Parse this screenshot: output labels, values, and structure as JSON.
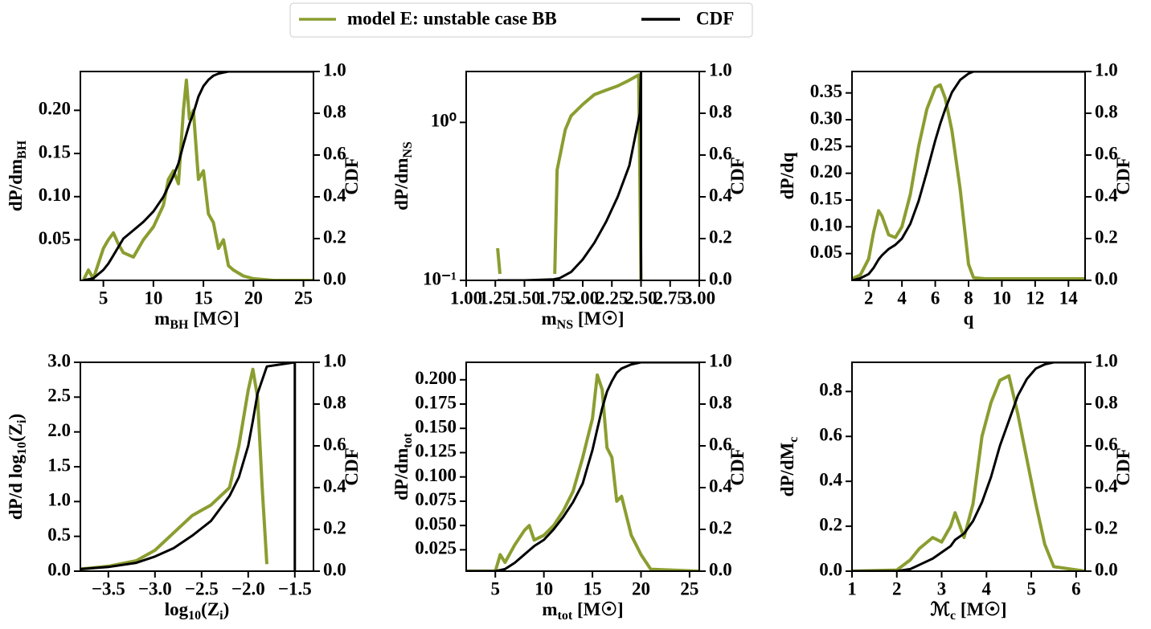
{
  "chart_data": [
    {
      "type": "line",
      "xlabel": [
        "m",
        "BH",
        " [M☉]"
      ],
      "ylabel": [
        "dP/dm",
        "BH"
      ],
      "y2label": [
        "CDF"
      ],
      "xlim": [
        2.7,
        26
      ],
      "xticks": [
        5,
        10,
        15,
        20,
        25
      ],
      "ylim": [
        0.003,
        0.245
      ],
      "yticks": [
        0.05,
        {
          "value": 0.1,
          "label": "0.10"
        },
        0.15,
        {
          "value": 0.2,
          "label": "0.20"
        }
      ],
      "y2lim": [
        0,
        1
      ],
      "y2ticks": [
        {
          "value": 0,
          "label": "0.0"
        },
        0.2,
        0.4,
        0.6,
        0.8,
        {
          "value": 1,
          "label": "1.0"
        }
      ],
      "series": [
        {
          "name": "model E: unstable case BB",
          "color": "#8a9e30",
          "x": [
            3,
            3.5,
            4,
            5,
            5.5,
            6,
            6.5,
            7,
            8,
            9,
            10,
            11,
            11.5,
            12,
            12.5,
            13,
            13.3,
            13.6,
            14,
            14.5,
            15,
            15.5,
            16,
            16.5,
            17,
            17.5,
            18,
            19,
            20,
            22,
            26
          ],
          "values": [
            0.003,
            0.015,
            0.005,
            0.04,
            0.05,
            0.058,
            0.045,
            0.035,
            0.03,
            0.05,
            0.065,
            0.09,
            0.12,
            0.13,
            0.115,
            0.2,
            0.235,
            0.19,
            0.2,
            0.12,
            0.13,
            0.08,
            0.07,
            0.04,
            0.05,
            0.02,
            0.015,
            0.008,
            0.005,
            0.003,
            0.003
          ]
        },
        {
          "name": "CDF",
          "color": "#000000",
          "axis": "y2",
          "x": [
            3,
            3.5,
            4,
            5,
            5.5,
            6,
            6.5,
            7,
            8,
            9,
            10,
            11,
            11.5,
            12,
            12.5,
            13,
            13.3,
            13.6,
            14,
            14.5,
            15,
            15.5,
            16,
            16.5,
            17,
            17.5,
            18,
            19,
            20,
            22,
            26
          ],
          "values": [
            0,
            0.005,
            0.01,
            0.05,
            0.08,
            0.12,
            0.16,
            0.2,
            0.24,
            0.28,
            0.33,
            0.4,
            0.45,
            0.5,
            0.56,
            0.65,
            0.7,
            0.75,
            0.8,
            0.88,
            0.93,
            0.96,
            0.98,
            0.99,
            0.995,
            1,
            1,
            1,
            1,
            1,
            1
          ]
        }
      ]
    },
    {
      "type": "line",
      "xlabel": [
        "m",
        "NS",
        " [M☉]"
      ],
      "ylabel": [
        "dP/dm",
        "NS"
      ],
      "y2label": [
        "CDF"
      ],
      "yscale": "log",
      "xlim": [
        1,
        3
      ],
      "xticks": [
        {
          "value": 1,
          "label": "1.00"
        },
        1.25,
        {
          "value": 1.5,
          "label": "1.50"
        },
        1.75,
        {
          "value": 2,
          "label": "2.00"
        },
        2.25,
        {
          "value": 2.5,
          "label": "2.50"
        },
        2.75,
        {
          "value": 3,
          "label": "3.00"
        }
      ],
      "ylim": [
        0.1,
        2.1
      ],
      "yticks": [
        {
          "value": 0.1,
          "label": "10⁻¹"
        },
        {
          "value": 1,
          "label": "10⁰"
        }
      ],
      "y2lim": [
        0,
        1
      ],
      "y2ticks": [
        {
          "value": 0,
          "label": "0.0"
        },
        0.2,
        0.4,
        0.6,
        0.8,
        {
          "value": 1,
          "label": "1.0"
        }
      ],
      "series": [
        {
          "color": "#8a9e30",
          "x": [
            1.27,
            1.29,
            1.5,
            1.76,
            1.78,
            1.85,
            1.9,
            2.0,
            2.1,
            2.2,
            2.3,
            2.4,
            2.48,
            2.5
          ],
          "values": [
            0.16,
            0.11,
            null,
            0.11,
            0.5,
            0.9,
            1.1,
            1.3,
            1.5,
            1.6,
            1.7,
            1.85,
            2.0,
            0.1
          ]
        },
        {
          "color": "#000000",
          "axis": "y2",
          "x": [
            1.27,
            1.5,
            1.75,
            1.8,
            1.9,
            2.0,
            2.1,
            2.2,
            2.3,
            2.4,
            2.49,
            2.5,
            2.5
          ],
          "values": [
            0,
            0,
            0.005,
            0.01,
            0.04,
            0.1,
            0.18,
            0.28,
            0.4,
            0.55,
            0.8,
            1,
            0
          ]
        }
      ]
    },
    {
      "type": "line",
      "xlabel": [
        "q"
      ],
      "ylabel": [
        "dP/dq"
      ],
      "y2label": [
        "CDF"
      ],
      "xlim": [
        1,
        15
      ],
      "xticks": [
        2,
        4,
        6,
        8,
        10,
        12,
        14
      ],
      "ylim": [
        0,
        0.39
      ],
      "yticks": [
        0.05,
        {
          "value": 0.1,
          "label": "0.10"
        },
        0.15,
        {
          "value": 0.2,
          "label": "0.20"
        },
        0.25,
        {
          "value": 0.3,
          "label": "0.30"
        },
        0.35
      ],
      "y2lim": [
        0,
        1
      ],
      "y2ticks": [
        {
          "value": 0,
          "label": "0.0"
        },
        0.2,
        0.4,
        0.6,
        0.8,
        {
          "value": 1,
          "label": "1.0"
        }
      ],
      "series": [
        {
          "color": "#8a9e30",
          "x": [
            1,
            1.5,
            2,
            2.3,
            2.6,
            2.8,
            3.2,
            3.6,
            4,
            4.5,
            5,
            5.5,
            6,
            6.3,
            6.6,
            7,
            7.5,
            8,
            8.3,
            9,
            12,
            15
          ],
          "values": [
            0.003,
            0.01,
            0.04,
            0.09,
            0.13,
            0.12,
            0.085,
            0.08,
            0.1,
            0.16,
            0.25,
            0.32,
            0.36,
            0.365,
            0.34,
            0.28,
            0.17,
            0.03,
            0.005,
            0.003,
            0.003,
            0.003
          ]
        },
        {
          "color": "#000000",
          "axis": "y2",
          "x": [
            1,
            1.5,
            2,
            2.3,
            2.6,
            2.8,
            3.2,
            3.6,
            4,
            4.5,
            5,
            5.5,
            6,
            6.3,
            6.6,
            7,
            7.5,
            8,
            8.3,
            9,
            12,
            15
          ],
          "values": [
            0,
            0.01,
            0.03,
            0.06,
            0.1,
            0.12,
            0.15,
            0.17,
            0.2,
            0.27,
            0.38,
            0.52,
            0.67,
            0.75,
            0.82,
            0.9,
            0.96,
            0.99,
            1,
            1,
            1,
            1
          ]
        }
      ]
    },
    {
      "type": "line",
      "xlabel": [
        "log",
        "10",
        "(Z",
        "i",
        ")"
      ],
      "ylabel": [
        "dP/d log",
        "10",
        "(Z",
        "i",
        ")"
      ],
      "y2label": [
        "CDF"
      ],
      "xlim": [
        -3.8,
        -1.3
      ],
      "xticks": [
        {
          "value": -3.5,
          "label": "−3.5"
        },
        {
          "value": -3,
          "label": "−3.0"
        },
        {
          "value": -2.5,
          "label": "−2.5"
        },
        {
          "value": -2,
          "label": "−2.0"
        },
        {
          "value": -1.5,
          "label": "−1.5"
        }
      ],
      "ylim": [
        0,
        3
      ],
      "yticks": [
        {
          "value": 0,
          "label": "0.0"
        },
        0.5,
        {
          "value": 1,
          "label": "1.0"
        },
        1.5,
        {
          "value": 2,
          "label": "2.0"
        },
        2.5,
        {
          "value": 3,
          "label": "3.0"
        }
      ],
      "y2lim": [
        0,
        1
      ],
      "y2ticks": [
        {
          "value": 0,
          "label": "0.0"
        },
        0.2,
        0.4,
        0.6,
        0.8,
        {
          "value": 1,
          "label": "1.0"
        }
      ],
      "series": [
        {
          "color": "#8a9e30",
          "x": [
            -3.8,
            -3.5,
            -3.2,
            -3.0,
            -2.8,
            -2.6,
            -2.4,
            -2.2,
            -2.1,
            -2.0,
            -1.95,
            -1.9,
            -1.85,
            -1.8
          ],
          "values": [
            0.03,
            0.07,
            0.15,
            0.3,
            0.55,
            0.8,
            0.95,
            1.2,
            1.8,
            2.6,
            2.9,
            2.5,
            1.2,
            0.1
          ]
        },
        {
          "color": "#000000",
          "axis": "y2",
          "x": [
            -3.8,
            -3.5,
            -3.2,
            -3.0,
            -2.8,
            -2.6,
            -2.4,
            -2.2,
            -2.1,
            -2.0,
            -1.95,
            -1.9,
            -1.8,
            -1.5,
            -1.5
          ],
          "values": [
            0.01,
            0.02,
            0.04,
            0.07,
            0.11,
            0.17,
            0.24,
            0.36,
            0.45,
            0.6,
            0.72,
            0.85,
            0.98,
            1,
            0
          ]
        }
      ]
    },
    {
      "type": "line",
      "xlabel": [
        "m",
        "tot",
        " [M☉]"
      ],
      "ylabel": [
        "dP/dm",
        "tot"
      ],
      "y2label": [
        "CDF"
      ],
      "xlim": [
        2,
        26
      ],
      "xticks": [
        5,
        10,
        15,
        20,
        25
      ],
      "ylim": [
        0.003,
        0.218
      ],
      "yticks": [
        0.025,
        {
          "value": 0.05,
          "label": "0.050"
        },
        0.075,
        {
          "value": 0.1,
          "label": "0.100"
        },
        0.125,
        {
          "value": 0.15,
          "label": "0.150"
        },
        0.175,
        {
          "value": 0.2,
          "label": "0.200"
        }
      ],
      "y2lim": [
        0,
        1
      ],
      "y2ticks": [
        {
          "value": 0,
          "label": "0.0"
        },
        0.2,
        0.4,
        0.6,
        0.8,
        {
          "value": 1,
          "label": "1.0"
        }
      ],
      "series": [
        {
          "color": "#8a9e30",
          "x": [
            2,
            5,
            5.5,
            6,
            7,
            8,
            8.5,
            9,
            10,
            11,
            12,
            13,
            14,
            14.5,
            15,
            15.5,
            16,
            16.5,
            17,
            17.5,
            18,
            19,
            20,
            21,
            26
          ],
          "values": [
            0.003,
            0.003,
            0.02,
            0.012,
            0.03,
            0.045,
            0.05,
            0.035,
            0.04,
            0.05,
            0.065,
            0.085,
            0.12,
            0.14,
            0.16,
            0.205,
            0.19,
            0.13,
            0.12,
            0.075,
            0.08,
            0.04,
            0.02,
            0.005,
            0.003
          ]
        },
        {
          "color": "#000000",
          "axis": "y2",
          "x": [
            2,
            5,
            5.5,
            6,
            7,
            8,
            8.5,
            9,
            10,
            11,
            12,
            13,
            14,
            14.5,
            15,
            15.5,
            16,
            16.5,
            17,
            17.5,
            18,
            19,
            20,
            21,
            26
          ],
          "values": [
            0,
            0,
            0.005,
            0.01,
            0.04,
            0.08,
            0.1,
            0.12,
            0.15,
            0.2,
            0.26,
            0.33,
            0.42,
            0.5,
            0.58,
            0.68,
            0.78,
            0.86,
            0.91,
            0.95,
            0.97,
            0.99,
            1,
            1,
            1
          ]
        }
      ]
    },
    {
      "type": "line",
      "xlabel": [
        "ℳ",
        "c",
        " [M☉]"
      ],
      "ylabel": [
        "dP/dM",
        "c"
      ],
      "y2label": [
        "CDF"
      ],
      "xlim": [
        1,
        6.2
      ],
      "xticks": [
        1,
        2,
        3,
        4,
        5,
        6
      ],
      "ylim": [
        0,
        0.93
      ],
      "yticks": [
        {
          "value": 0,
          "label": "0.0"
        },
        0.2,
        0.4,
        0.6,
        0.8
      ],
      "y2lim": [
        0,
        1
      ],
      "y2ticks": [
        {
          "value": 0,
          "label": "0.0"
        },
        0.2,
        0.4,
        0.6,
        0.8,
        {
          "value": 1,
          "label": "1.0"
        }
      ],
      "series": [
        {
          "color": "#8a9e30",
          "x": [
            1,
            2,
            2.3,
            2.5,
            2.8,
            3,
            3.2,
            3.3,
            3.5,
            3.7,
            3.9,
            4.1,
            4.3,
            4.5,
            4.7,
            4.9,
            5.1,
            5.3,
            5.5,
            6.2
          ],
          "values": [
            0,
            0.005,
            0.05,
            0.1,
            0.15,
            0.13,
            0.2,
            0.26,
            0.15,
            0.3,
            0.6,
            0.75,
            0.85,
            0.87,
            0.7,
            0.5,
            0.3,
            0.12,
            0.02,
            0
          ]
        },
        {
          "color": "#000000",
          "axis": "y2",
          "x": [
            1,
            2,
            2.3,
            2.5,
            2.8,
            3,
            3.2,
            3.3,
            3.5,
            3.7,
            3.9,
            4.1,
            4.3,
            4.5,
            4.7,
            4.9,
            5.1,
            5.3,
            5.5,
            6.2
          ],
          "values": [
            0,
            0,
            0.01,
            0.03,
            0.06,
            0.09,
            0.12,
            0.15,
            0.18,
            0.24,
            0.33,
            0.45,
            0.6,
            0.72,
            0.84,
            0.92,
            0.97,
            0.99,
            1,
            1
          ]
        }
      ]
    }
  ]
}
